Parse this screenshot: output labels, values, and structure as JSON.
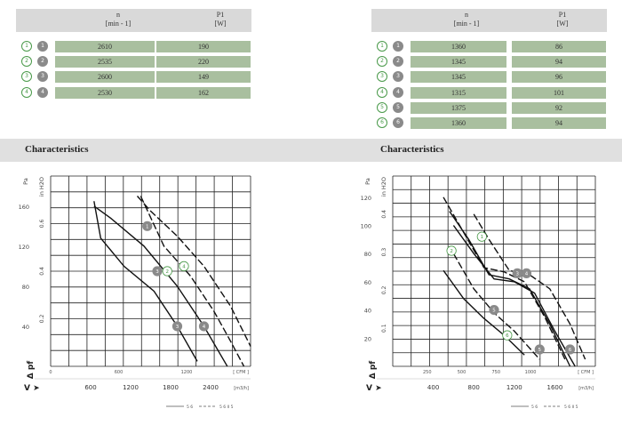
{
  "tables": [
    {
      "header": {
        "n_label": "n",
        "n_unit": "[min - 1]",
        "p_label": "P1",
        "p_unit": "[W]"
      },
      "rows": [
        {
          "mark": "1",
          "n": "2610",
          "p": "190"
        },
        {
          "mark": "2",
          "n": "2535",
          "p": "220"
        },
        {
          "mark": "3",
          "n": "2600",
          "p": "149"
        },
        {
          "mark": "4",
          "n": "2530",
          "p": "162"
        }
      ]
    },
    {
      "header": {
        "n_label": "n",
        "n_unit": "[min - 1]",
        "p_label": "P1",
        "p_unit": "[W]"
      },
      "rows": [
        {
          "mark": "1",
          "n": "1360",
          "p": "86"
        },
        {
          "mark": "2",
          "n": "1345",
          "p": "94"
        },
        {
          "mark": "3",
          "n": "1345",
          "p": "96"
        },
        {
          "mark": "4",
          "n": "1315",
          "p": "101"
        },
        {
          "mark": "5",
          "n": "1375",
          "p": "92"
        },
        {
          "mark": "6",
          "n": "1360",
          "p": "94"
        }
      ]
    }
  ],
  "section_title": "Characteristics",
  "chart_data": [
    {
      "type": "line",
      "title": "Characteristics",
      "y_labels": {
        "pa": "Pa",
        "inh2o": "in H2O",
        "delta_p": "Δ pf"
      },
      "y_ticks_pa": [
        40,
        80,
        120,
        160
      ],
      "y_ticks_inh2o": [
        "0.2",
        "0.4",
        "0.6"
      ],
      "x_ticks_cfm": [
        0,
        600,
        1200
      ],
      "x_unit_cfm": "CFM",
      "x_ticks_m3h": [
        600,
        1200,
        1800,
        2400
      ],
      "x_unit_m3h": "m3/h",
      "v_label": "V",
      "xlim": [
        0,
        3000
      ],
      "ylim": [
        0,
        190
      ],
      "series": [
        {
          "name": "1",
          "x": [
            1300,
            1500,
            1900,
            2300,
            2700,
            3000
          ],
          "y": [
            170,
            155,
            130,
            100,
            60,
            20
          ]
        },
        {
          "name": "2",
          "x": [
            650,
            900,
            1400,
            1900,
            2300,
            2650
          ],
          "y": [
            160,
            148,
            120,
            80,
            40,
            0
          ]
        },
        {
          "name": "3",
          "x": [
            650,
            750,
            1100,
            1550,
            1900,
            2200
          ],
          "y": [
            165,
            128,
            100,
            75,
            40,
            5
          ]
        },
        {
          "name": "4",
          "x": [
            1350,
            1700,
            2100,
            2450,
            2700,
            2900
          ],
          "y": [
            170,
            120,
            90,
            55,
            25,
            0
          ]
        }
      ],
      "markers": [
        {
          "label": "1",
          "filled": true,
          "x": 1450,
          "y": 140
        },
        {
          "label": "2",
          "filled": false,
          "x": 1750,
          "y": 95
        },
        {
          "label": "3",
          "filled": true,
          "x": 1600,
          "y": 95
        },
        {
          "label": "4",
          "filled": false,
          "x": 2000,
          "y": 100
        },
        {
          "label": "3",
          "filled": true,
          "x": 1900,
          "y": 40
        },
        {
          "label": "4",
          "filled": true,
          "x": 2300,
          "y": 40
        }
      ],
      "legend": {
        "solid": "5 6",
        "dashed": "5 6   II 5"
      }
    },
    {
      "type": "line",
      "title": "Characteristics",
      "y_labels": {
        "pa": "Pa",
        "inh2o": "in H2O",
        "delta_p": "Δ pf"
      },
      "y_ticks_pa": [
        20,
        40,
        60,
        80,
        100,
        120
      ],
      "y_ticks_inh2o": [
        "0.1",
        "0.2",
        "0.3",
        "0.4"
      ],
      "x_ticks_cfm": [
        250,
        500,
        750,
        1000
      ],
      "x_unit_cfm": "CFM",
      "x_ticks_m3h": [
        400,
        800,
        1200,
        1600
      ],
      "x_unit_m3h": "m3/h",
      "v_label": "V",
      "xlim": [
        0,
        2000
      ],
      "ylim": [
        0,
        135
      ],
      "series": [
        {
          "name": "1",
          "x": [
            500,
            700,
            900,
            1100,
            1300,
            1500,
            1700
          ],
          "y": [
            120,
            95,
            70,
            67,
            60,
            35,
            5
          ]
        },
        {
          "name": "2",
          "x": [
            560,
            750,
            950,
            1150,
            1350,
            1550,
            1750
          ],
          "y": [
            110,
            90,
            65,
            62,
            55,
            30,
            0
          ]
        },
        {
          "name": "3",
          "x": [
            600,
            800,
            1000,
            1200,
            1400,
            1600,
            1800
          ],
          "y": [
            100,
            80,
            62,
            60,
            52,
            25,
            0
          ]
        },
        {
          "name": "4",
          "x": [
            800,
            950,
            1150,
            1350,
            1550,
            1750,
            1900
          ],
          "y": [
            108,
            90,
            68,
            65,
            55,
            30,
            5
          ]
        },
        {
          "name": "5",
          "x": [
            500,
            700,
            900,
            1100,
            1300
          ],
          "y": [
            68,
            48,
            34,
            22,
            8
          ]
        },
        {
          "name": "6",
          "x": [
            600,
            800,
            1000,
            1200,
            1450
          ],
          "y": [
            80,
            55,
            38,
            25,
            5
          ]
        }
      ],
      "markers": [
        {
          "label": "1",
          "filled": false,
          "x": 880,
          "y": 92
        },
        {
          "label": "2",
          "filled": false,
          "x": 580,
          "y": 82
        },
        {
          "label": "3",
          "filled": true,
          "x": 1230,
          "y": 66
        },
        {
          "label": "4",
          "filled": true,
          "x": 1320,
          "y": 66
        },
        {
          "label": "5",
          "filled": true,
          "x": 1000,
          "y": 40
        },
        {
          "label": "6",
          "filled": false,
          "x": 1130,
          "y": 22
        },
        {
          "label": "5",
          "filled": true,
          "x": 1450,
          "y": 12
        },
        {
          "label": "6",
          "filled": true,
          "x": 1750,
          "y": 12
        }
      ],
      "legend": {
        "solid": "5 6",
        "dashed": "5 6   II 5"
      }
    }
  ],
  "colors": {
    "header_bg": "#d9d9d9",
    "cell_bg": "#a9bf9f",
    "band_bg": "#e0e0e0",
    "marker_outline": "#4a9a4a",
    "marker_fill": "#8a8a8a"
  }
}
